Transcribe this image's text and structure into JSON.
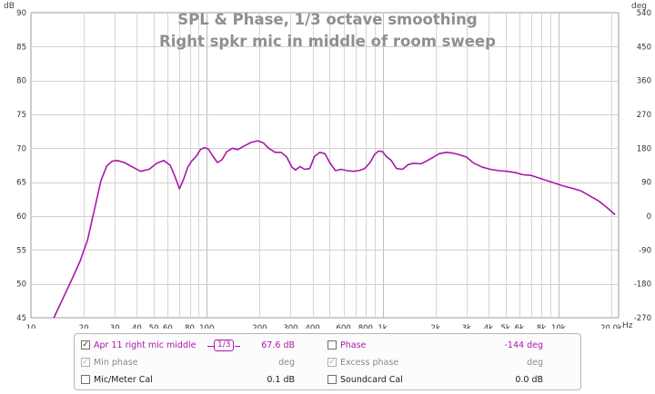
{
  "chart_data": {
    "type": "line",
    "title": "SPL & Phase, 1/3 octave smoothing",
    "subtitle": "Right spkr mic in middle of room sweep",
    "y_unit": "dB",
    "y2_unit": "deg",
    "x_unit": "Hz",
    "xlim": [
      10,
      22000
    ],
    "ylim": [
      45,
      90
    ],
    "y2lim": [
      -270,
      540
    ],
    "x_scale": "log",
    "grid": true,
    "y_ticks": [
      45,
      50,
      55,
      60,
      65,
      70,
      75,
      80,
      85,
      90
    ],
    "y2_ticks": [
      -270,
      -180,
      -90,
      0,
      90,
      180,
      270,
      360,
      450,
      540
    ],
    "x_ticks": [
      {
        "v": 10,
        "label": "10"
      },
      {
        "v": 20,
        "label": "20"
      },
      {
        "v": 30,
        "label": "30"
      },
      {
        "v": 40,
        "label": "40"
      },
      {
        "v": 50,
        "label": "50"
      },
      {
        "v": 60,
        "label": "60"
      },
      {
        "v": 80,
        "label": "80"
      },
      {
        "v": 100,
        "label": "100"
      },
      {
        "v": 200,
        "label": "200"
      },
      {
        "v": 300,
        "label": "300"
      },
      {
        "v": 400,
        "label": "400"
      },
      {
        "v": 600,
        "label": "600"
      },
      {
        "v": 800,
        "label": "800"
      },
      {
        "v": 1000,
        "label": "1k"
      },
      {
        "v": 2000,
        "label": "2k"
      },
      {
        "v": 3000,
        "label": "3k"
      },
      {
        "v": 4000,
        "label": "4k"
      },
      {
        "v": 5000,
        "label": "5k"
      },
      {
        "v": 6000,
        "label": "6k"
      },
      {
        "v": 8000,
        "label": "8k"
      },
      {
        "v": 10000,
        "label": "10k"
      },
      {
        "v": 20000,
        "label": "20.0k"
      }
    ],
    "series": [
      {
        "name": "Apr 11 right mic middle",
        "color": "#a818a8",
        "x": [
          13.5,
          15,
          17,
          19,
          21,
          23,
          25,
          27,
          29,
          31,
          34,
          38,
          42,
          47,
          52,
          57,
          62,
          66,
          70,
          74,
          78,
          82,
          87,
          92,
          97,
          102,
          108,
          115,
          122,
          130,
          140,
          150,
          165,
          180,
          195,
          210,
          225,
          245,
          265,
          285,
          305,
          320,
          340,
          360,
          385,
          410,
          440,
          470,
          500,
          540,
          580,
          630,
          680,
          730,
          790,
          850,
          900,
          950,
          1000,
          1050,
          1120,
          1200,
          1300,
          1400,
          1500,
          1650,
          1800,
          1950,
          2100,
          2300,
          2500,
          2700,
          3000,
          3300,
          3700,
          4100,
          4600,
          5100,
          5700,
          6300,
          7000,
          7800,
          8700,
          9700,
          10800,
          12000,
          13500,
          15000,
          17000,
          19000,
          21000
        ],
        "values": [
          45.0,
          47.5,
          50.5,
          53.3,
          56.5,
          61.0,
          65.2,
          67.4,
          68.1,
          68.2,
          67.9,
          67.2,
          66.6,
          66.9,
          67.8,
          68.2,
          67.5,
          65.8,
          64.0,
          65.5,
          67.2,
          68.1,
          68.8,
          69.8,
          70.1,
          69.9,
          68.9,
          67.9,
          68.3,
          69.5,
          70.0,
          69.8,
          70.4,
          70.9,
          71.1,
          70.8,
          70.0,
          69.4,
          69.4,
          68.7,
          67.2,
          66.8,
          67.3,
          66.9,
          67.0,
          68.8,
          69.4,
          69.2,
          67.9,
          66.7,
          66.9,
          66.7,
          66.6,
          66.7,
          67.0,
          67.9,
          69.1,
          69.6,
          69.5,
          68.8,
          68.2,
          67.0,
          66.9,
          67.6,
          67.8,
          67.7,
          68.2,
          68.7,
          69.2,
          69.4,
          69.3,
          69.1,
          68.7,
          67.8,
          67.2,
          66.9,
          66.7,
          66.6,
          66.4,
          66.1,
          66.0,
          65.6,
          65.2,
          64.8,
          64.4,
          64.1,
          63.7,
          63.0,
          62.2,
          61.2,
          60.2
        ]
      }
    ]
  },
  "legend": {
    "rows": [
      {
        "name": "Apr 11 right mic middle",
        "checked": true,
        "enabled": true,
        "smoothing": "1/3",
        "value": "67.6 dB",
        "right_name": "Phase",
        "right_checked": false,
        "right_enabled": true,
        "right_value": "-144 deg"
      },
      {
        "name": "Min phase",
        "checked": true,
        "enabled": false,
        "value": "deg",
        "right_name": "Excess phase",
        "right_checked": true,
        "right_enabled": false,
        "right_value": "deg"
      },
      {
        "name": "Mic/Meter Cal",
        "checked": false,
        "enabled": true,
        "value": "0.1 dB",
        "right_name": "Soundcard Cal",
        "right_checked": false,
        "right_enabled": true,
        "right_value": "0.0 dB"
      }
    ],
    "check_glyph": "✓"
  }
}
